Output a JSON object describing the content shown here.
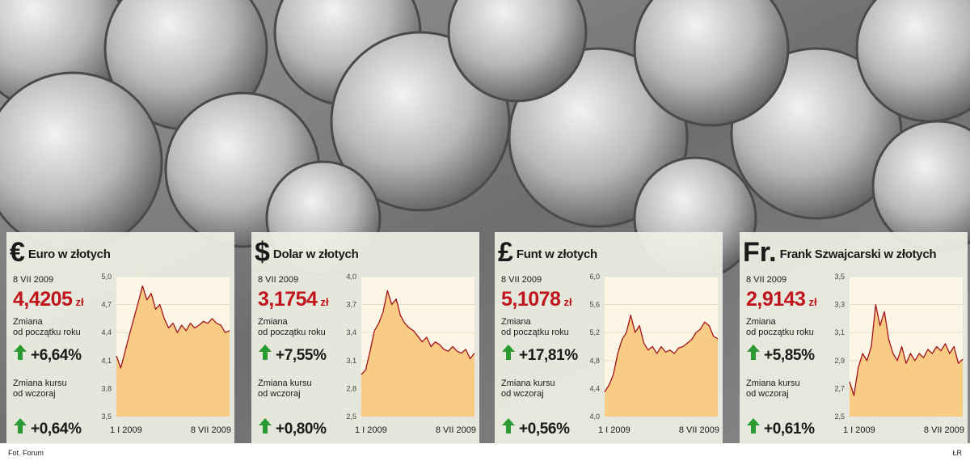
{
  "chart_data": [
    {
      "type": "area",
      "symbol": "€",
      "title": "Euro w złotych",
      "date": "8 VII 2009",
      "rate": "4,4205",
      "unit": "zł",
      "ytd_label": [
        "Zmiana",
        "od początku roku"
      ],
      "ytd_change": "+6,64%",
      "day_label": [
        "Zmiana kursu",
        "od wczoraj"
      ],
      "day_change": "+0,64%",
      "categories": [
        "1 I 2009",
        null,
        null,
        null,
        null,
        null,
        null,
        null,
        null,
        null,
        null,
        null,
        null,
        null,
        null,
        null,
        null,
        null,
        null,
        null,
        null,
        null,
        null,
        null,
        null,
        null,
        "8 VII 2009"
      ],
      "values": [
        4.15,
        4.02,
        4.2,
        4.38,
        4.55,
        4.72,
        4.9,
        4.75,
        4.82,
        4.65,
        4.7,
        4.55,
        4.45,
        4.5,
        4.4,
        4.48,
        4.42,
        4.5,
        4.45,
        4.48,
        4.52,
        4.5,
        4.55,
        4.5,
        4.48,
        4.4,
        4.42
      ],
      "color": "#a3121c",
      "fill_color": "#f7c87a",
      "ylim": [
        3.5,
        5.0
      ],
      "yticks": [
        {
          "value": 3.5,
          "label": "3,5"
        },
        {
          "value": 3.8,
          "label": "3,8"
        },
        {
          "value": 4.1,
          "label": "4,1"
        },
        {
          "value": 4.4,
          "label": "4,4"
        },
        {
          "value": 4.7,
          "label": "4,7"
        },
        {
          "value": 5.0,
          "label": "5,0"
        }
      ],
      "grid": true
    },
    {
      "type": "area",
      "symbol": "$",
      "title": "Dolar w złotych",
      "date": "8 VII 2009",
      "rate": "3,1754",
      "unit": "zł",
      "ytd_label": [
        "Zmiana",
        "od początku roku"
      ],
      "ytd_change": "+7,55%",
      "day_label": [
        "Zmiana kursu",
        "od wczoraj"
      ],
      "day_change": "+0,80%",
      "categories": [
        "1 I 2009",
        null,
        null,
        null,
        null,
        null,
        null,
        null,
        null,
        null,
        null,
        null,
        null,
        null,
        null,
        null,
        null,
        null,
        null,
        null,
        null,
        null,
        null,
        null,
        null,
        null,
        "8 VII 2009"
      ],
      "values": [
        2.95,
        3.0,
        3.2,
        3.42,
        3.5,
        3.62,
        3.85,
        3.7,
        3.76,
        3.58,
        3.5,
        3.45,
        3.42,
        3.36,
        3.3,
        3.35,
        3.25,
        3.3,
        3.27,
        3.22,
        3.2,
        3.25,
        3.2,
        3.18,
        3.22,
        3.12,
        3.18
      ],
      "color": "#a3121c",
      "fill_color": "#f7c87a",
      "ylim": [
        2.5,
        4.0
      ],
      "yticks": [
        {
          "value": 2.5,
          "label": "2,5"
        },
        {
          "value": 2.8,
          "label": "2,8"
        },
        {
          "value": 3.1,
          "label": "3,1"
        },
        {
          "value": 3.4,
          "label": "3,4"
        },
        {
          "value": 3.7,
          "label": "3,7"
        },
        {
          "value": 4.0,
          "label": "4,0"
        }
      ],
      "grid": true
    },
    {
      "type": "area",
      "symbol": "£",
      "title": "Funt w złotych",
      "date": "8 VII 2009",
      "rate": "5,1078",
      "unit": "zł",
      "ytd_label": [
        "Zmiana",
        "od początku roku"
      ],
      "ytd_change": "+17,81%",
      "day_label": [
        "Zmiana kursu",
        "od wczoraj"
      ],
      "day_change": "+0,56%",
      "categories": [
        "1 I 2009",
        null,
        null,
        null,
        null,
        null,
        null,
        null,
        null,
        null,
        null,
        null,
        null,
        null,
        null,
        null,
        null,
        null,
        null,
        null,
        null,
        null,
        null,
        null,
        null,
        null,
        "8 VII 2009"
      ],
      "values": [
        4.35,
        4.45,
        4.6,
        4.9,
        5.1,
        5.2,
        5.45,
        5.2,
        5.3,
        5.05,
        4.95,
        5.0,
        4.9,
        5.0,
        4.92,
        4.95,
        4.9,
        4.98,
        5.0,
        5.05,
        5.1,
        5.2,
        5.25,
        5.35,
        5.3,
        5.15,
        5.11
      ],
      "color": "#a3121c",
      "fill_color": "#f7c87a",
      "ylim": [
        4.0,
        6.0
      ],
      "yticks": [
        {
          "value": 4.0,
          "label": "4,0"
        },
        {
          "value": 4.4,
          "label": "4,4"
        },
        {
          "value": 4.8,
          "label": "4,8"
        },
        {
          "value": 5.2,
          "label": "5,2"
        },
        {
          "value": 5.6,
          "label": "5,6"
        },
        {
          "value": 6.0,
          "label": "6,0"
        }
      ],
      "grid": true
    },
    {
      "type": "area",
      "symbol": "Fr.",
      "title": "Frank Szwajcarski w złotych",
      "date": "8 VII 2009",
      "rate": "2,9143",
      "unit": "zł",
      "ytd_label": [
        "Zmiana",
        "od początku roku"
      ],
      "ytd_change": "+5,85%",
      "day_label": [
        "Zmiana kursu",
        "od wczoraj"
      ],
      "day_change": "+0,61%",
      "categories": [
        "1 I 2009",
        null,
        null,
        null,
        null,
        null,
        null,
        null,
        null,
        null,
        null,
        null,
        null,
        null,
        null,
        null,
        null,
        null,
        null,
        null,
        null,
        null,
        null,
        null,
        null,
        null,
        "8 VII 2009"
      ],
      "values": [
        2.75,
        2.65,
        2.85,
        2.95,
        2.9,
        3.0,
        3.3,
        3.15,
        3.25,
        3.05,
        2.95,
        2.9,
        3.0,
        2.88,
        2.95,
        2.9,
        2.95,
        2.92,
        2.98,
        2.95,
        3.0,
        2.97,
        3.02,
        2.95,
        3.0,
        2.88,
        2.91
      ],
      "color": "#a3121c",
      "fill_color": "#f7c87a",
      "ylim": [
        2.5,
        3.5
      ],
      "yticks": [
        {
          "value": 2.5,
          "label": "2,5"
        },
        {
          "value": 2.7,
          "label": "2,7"
        },
        {
          "value": 2.9,
          "label": "2,9"
        },
        {
          "value": 3.1,
          "label": "3,1"
        },
        {
          "value": 3.3,
          "label": "3,3"
        },
        {
          "value": 3.5,
          "label": "3,5"
        }
      ],
      "grid": true
    }
  ],
  "footer": {
    "credit": "Fot. Forum",
    "author": "ŁR"
  }
}
